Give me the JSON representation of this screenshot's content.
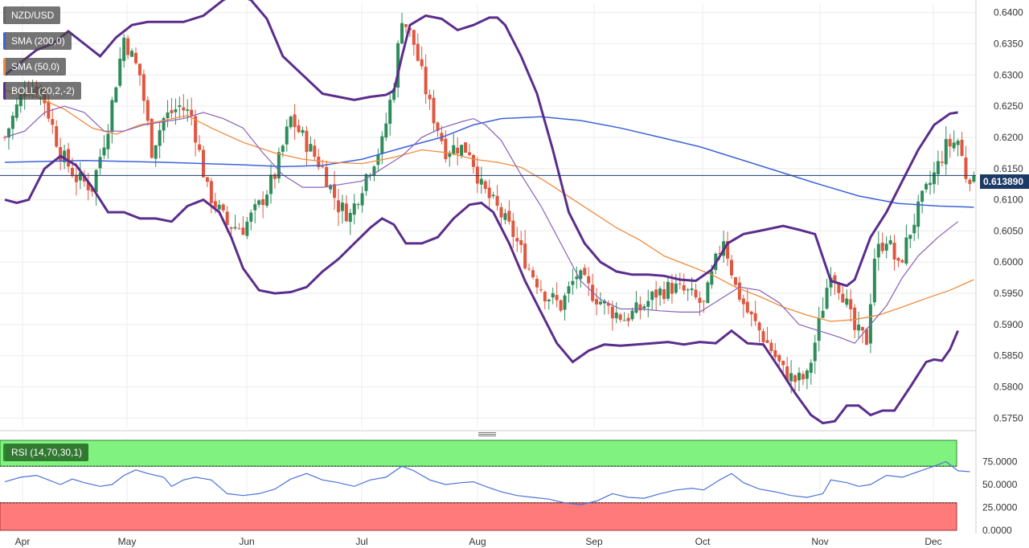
{
  "labels": {
    "symbol": "NZD/USD",
    "sma200": "SMA (200,0)",
    "sma50": "SMA (50,0)",
    "boll": "BOLL (20,2,-2)",
    "rsi": "RSI (14,70,30,1)",
    "last_price": "0.613890"
  },
  "colors": {
    "up": "#2f8c5a",
    "down": "#e0573f",
    "sma200": "#3b63d9",
    "sma50": "#f08a3c",
    "boll_band": "#5b2d8c",
    "boll_mid": "#8860b8",
    "rsi_line": "#4a72d8",
    "overbought_zone": "#7ff27f",
    "oversold_zone": "#ff7b7b"
  },
  "chart_data": {
    "type": "candlestick",
    "x_ticks": [
      "Apr",
      "May",
      "Jun",
      "Jul",
      "Aug",
      "Sep",
      "Oct",
      "Nov",
      "Dec"
    ],
    "y_ticks": [
      "0.6400",
      "0.6350",
      "0.6300",
      "0.6250",
      "0.6200",
      "0.6150",
      "0.6100",
      "0.6050",
      "0.6000",
      "0.5950",
      "0.5900",
      "0.5850",
      "0.5800",
      "0.5750"
    ],
    "ylim": [
      0.5735,
      0.6415
    ],
    "last_price": 0.61389,
    "candle_x_range": [
      0,
      179
    ],
    "price_path": [
      [
        0,
        0.62
      ],
      [
        5,
        0.628
      ],
      [
        9,
        0.628
      ],
      [
        14,
        0.6175
      ],
      [
        18,
        0.6135
      ],
      [
        22,
        0.612
      ],
      [
        26,
        0.622
      ],
      [
        30,
        0.636
      ],
      [
        34,
        0.63
      ],
      [
        37,
        0.618
      ],
      [
        40,
        0.623
      ],
      [
        44,
        0.625
      ],
      [
        47,
        0.6235
      ],
      [
        51,
        0.6115
      ],
      [
        56,
        0.606
      ],
      [
        60,
        0.6055
      ],
      [
        64,
        0.609
      ],
      [
        68,
        0.614
      ],
      [
        72,
        0.623
      ],
      [
        77,
        0.618
      ],
      [
        80,
        0.615
      ],
      [
        84,
        0.609
      ],
      [
        87,
        0.6075
      ],
      [
        91,
        0.614
      ],
      [
        95,
        0.619
      ],
      [
        98,
        0.629
      ],
      [
        100,
        0.6395
      ],
      [
        103,
        0.635
      ],
      [
        107,
        0.625
      ],
      [
        111,
        0.618
      ],
      [
        114,
        0.6185
      ],
      [
        117,
        0.618
      ],
      [
        120,
        0.612
      ],
      [
        124,
        0.6085
      ],
      [
        128,
        0.6045
      ],
      [
        132,
        0.599
      ],
      [
        136,
        0.595
      ],
      [
        140,
        0.593
      ],
      [
        144,
        0.598
      ],
      [
        148,
        0.595
      ],
      [
        152,
        0.5925
      ],
      [
        156,
        0.591
      ],
      [
        160,
        0.5925
      ],
      [
        164,
        0.595
      ],
      [
        168,
        0.596
      ],
      [
        172,
        0.595
      ],
      [
        176,
        0.593
      ],
      [
        179,
        0.6
      ],
      [
        181,
        0.604
      ],
      [
        184,
        0.596
      ],
      [
        187,
        0.592
      ],
      [
        190,
        0.589
      ],
      [
        193,
        0.586
      ],
      [
        196,
        0.5825
      ],
      [
        199,
        0.581
      ],
      [
        202,
        0.5815
      ],
      [
        205,
        0.59
      ],
      [
        208,
        0.599
      ],
      [
        211,
        0.595
      ],
      [
        214,
        0.589
      ],
      [
        217,
        0.5875
      ],
      [
        219,
        0.601
      ],
      [
        222,
        0.604
      ],
      [
        225,
        0.599
      ],
      [
        228,
        0.605
      ],
      [
        231,
        0.61
      ],
      [
        234,
        0.614
      ],
      [
        237,
        0.6185
      ],
      [
        240,
        0.6195
      ],
      [
        242,
        0.614
      ],
      [
        244,
        0.6139
      ]
    ],
    "sma200": [
      [
        0,
        0.616
      ],
      [
        20,
        0.6163
      ],
      [
        40,
        0.616
      ],
      [
        60,
        0.6156
      ],
      [
        70,
        0.6153
      ],
      [
        80,
        0.6155
      ],
      [
        90,
        0.6165
      ],
      [
        100,
        0.6183
      ],
      [
        110,
        0.62
      ],
      [
        118,
        0.622
      ],
      [
        125,
        0.623
      ],
      [
        135,
        0.6233
      ],
      [
        145,
        0.6227
      ],
      [
        155,
        0.6215
      ],
      [
        165,
        0.62
      ],
      [
        175,
        0.6185
      ],
      [
        185,
        0.6165
      ],
      [
        195,
        0.6145
      ],
      [
        205,
        0.6125
      ],
      [
        215,
        0.6106
      ],
      [
        225,
        0.6094
      ],
      [
        235,
        0.609
      ],
      [
        244,
        0.6088
      ]
    ],
    "sma50": [
      [
        0,
        0.6275
      ],
      [
        8,
        0.6265
      ],
      [
        15,
        0.6245
      ],
      [
        22,
        0.6215
      ],
      [
        28,
        0.6205
      ],
      [
        34,
        0.622
      ],
      [
        40,
        0.6227
      ],
      [
        46,
        0.6235
      ],
      [
        52,
        0.6215
      ],
      [
        60,
        0.6192
      ],
      [
        68,
        0.6175
      ],
      [
        75,
        0.6165
      ],
      [
        82,
        0.616
      ],
      [
        90,
        0.6158
      ],
      [
        98,
        0.6168
      ],
      [
        105,
        0.618
      ],
      [
        112,
        0.6175
      ],
      [
        118,
        0.6165
      ],
      [
        124,
        0.616
      ],
      [
        130,
        0.6152
      ],
      [
        136,
        0.613
      ],
      [
        142,
        0.6105
      ],
      [
        148,
        0.608
      ],
      [
        154,
        0.6055
      ],
      [
        160,
        0.6035
      ],
      [
        166,
        0.601
      ],
      [
        172,
        0.5995
      ],
      [
        178,
        0.598
      ],
      [
        184,
        0.596
      ],
      [
        190,
        0.5945
      ],
      [
        196,
        0.5928
      ],
      [
        202,
        0.5915
      ],
      [
        208,
        0.5905
      ],
      [
        214,
        0.5908
      ],
      [
        220,
        0.5915
      ],
      [
        226,
        0.5928
      ],
      [
        232,
        0.5942
      ],
      [
        238,
        0.5955
      ],
      [
        244,
        0.5972
      ]
    ],
    "boll_upper": [
      [
        0,
        0.63
      ],
      [
        4,
        0.632
      ],
      [
        8,
        0.634
      ],
      [
        12,
        0.635
      ],
      [
        16,
        0.637
      ],
      [
        20,
        0.635
      ],
      [
        24,
        0.633
      ],
      [
        28,
        0.636
      ],
      [
        32,
        0.638
      ],
      [
        36,
        0.6385
      ],
      [
        40,
        0.6385
      ],
      [
        45,
        0.6385
      ],
      [
        50,
        0.6395
      ],
      [
        55,
        0.642
      ],
      [
        58,
        0.643
      ],
      [
        62,
        0.642
      ],
      [
        66,
        0.639
      ],
      [
        70,
        0.633
      ],
      [
        75,
        0.63
      ],
      [
        80,
        0.627
      ],
      [
        84,
        0.6265
      ],
      [
        88,
        0.626
      ],
      [
        92,
        0.6265
      ],
      [
        96,
        0.6268
      ],
      [
        98,
        0.6275
      ],
      [
        100,
        0.633
      ],
      [
        102,
        0.638
      ],
      [
        106,
        0.6395
      ],
      [
        110,
        0.639
      ],
      [
        114,
        0.6372
      ],
      [
        118,
        0.638
      ],
      [
        122,
        0.6392
      ],
      [
        124,
        0.6392
      ],
      [
        126,
        0.638
      ],
      [
        130,
        0.633
      ],
      [
        134,
        0.627
      ],
      [
        138,
        0.618
      ],
      [
        142,
        0.608
      ],
      [
        146,
        0.603
      ],
      [
        150,
        0.6
      ],
      [
        154,
        0.5985
      ],
      [
        158,
        0.598
      ],
      [
        162,
        0.598
      ],
      [
        166,
        0.5978
      ],
      [
        170,
        0.5972
      ],
      [
        174,
        0.597
      ],
      [
        178,
        0.5988
      ],
      [
        182,
        0.603
      ],
      [
        186,
        0.6045
      ],
      [
        190,
        0.605
      ],
      [
        196,
        0.6058
      ],
      [
        200,
        0.6052
      ],
      [
        204,
        0.6045
      ],
      [
        208,
        0.597
      ],
      [
        212,
        0.5962
      ],
      [
        214,
        0.5972
      ],
      [
        218,
        0.604
      ],
      [
        222,
        0.608
      ],
      [
        226,
        0.613
      ],
      [
        230,
        0.618
      ],
      [
        234,
        0.622
      ],
      [
        238,
        0.6238
      ],
      [
        240,
        0.624
      ]
    ],
    "boll_lower": [
      [
        0,
        0.61
      ],
      [
        3,
        0.6095
      ],
      [
        6,
        0.61
      ],
      [
        10,
        0.615
      ],
      [
        14,
        0.617
      ],
      [
        18,
        0.6155
      ],
      [
        22,
        0.612
      ],
      [
        26,
        0.608
      ],
      [
        30,
        0.608
      ],
      [
        34,
        0.607
      ],
      [
        38,
        0.607
      ],
      [
        42,
        0.6065
      ],
      [
        46,
        0.609
      ],
      [
        50,
        0.61
      ],
      [
        54,
        0.608
      ],
      [
        57,
        0.604
      ],
      [
        60,
        0.599
      ],
      [
        64,
        0.5955
      ],
      [
        68,
        0.595
      ],
      [
        72,
        0.5952
      ],
      [
        76,
        0.596
      ],
      [
        80,
        0.5985
      ],
      [
        84,
        0.6005
      ],
      [
        88,
        0.603
      ],
      [
        92,
        0.6055
      ],
      [
        95,
        0.607
      ],
      [
        98,
        0.606
      ],
      [
        101,
        0.603
      ],
      [
        105,
        0.603
      ],
      [
        109,
        0.604
      ],
      [
        113,
        0.607
      ],
      [
        117,
        0.6092
      ],
      [
        120,
        0.6095
      ],
      [
        123,
        0.608
      ],
      [
        127,
        0.603
      ],
      [
        131,
        0.597
      ],
      [
        135,
        0.592
      ],
      [
        139,
        0.587
      ],
      [
        143,
        0.584
      ],
      [
        147,
        0.5858
      ],
      [
        151,
        0.5868
      ],
      [
        155,
        0.5866
      ],
      [
        159,
        0.5868
      ],
      [
        163,
        0.587
      ],
      [
        167,
        0.5872
      ],
      [
        171,
        0.5868
      ],
      [
        175,
        0.5872
      ],
      [
        179,
        0.587
      ],
      [
        183,
        0.589
      ],
      [
        187,
        0.587
      ],
      [
        191,
        0.5868
      ],
      [
        195,
        0.583
      ],
      [
        199,
        0.579
      ],
      [
        203,
        0.5755
      ],
      [
        206,
        0.5742
      ],
      [
        209,
        0.5745
      ],
      [
        212,
        0.577
      ],
      [
        215,
        0.577
      ],
      [
        218,
        0.5755
      ],
      [
        221,
        0.5762
      ],
      [
        224,
        0.5762
      ],
      [
        228,
        0.58
      ],
      [
        232,
        0.584
      ],
      [
        234,
        0.5844
      ],
      [
        236,
        0.5842
      ],
      [
        238,
        0.586
      ],
      [
        240,
        0.589
      ]
    ],
    "boll_mid": [
      [
        0,
        0.62
      ],
      [
        5,
        0.621
      ],
      [
        10,
        0.624
      ],
      [
        15,
        0.625
      ],
      [
        20,
        0.624
      ],
      [
        25,
        0.621
      ],
      [
        30,
        0.621
      ],
      [
        35,
        0.622
      ],
      [
        40,
        0.6225
      ],
      [
        45,
        0.623
      ],
      [
        50,
        0.624
      ],
      [
        55,
        0.623
      ],
      [
        60,
        0.6215
      ],
      [
        65,
        0.6175
      ],
      [
        70,
        0.614
      ],
      [
        75,
        0.612
      ],
      [
        80,
        0.612
      ],
      [
        85,
        0.6125
      ],
      [
        90,
        0.613
      ],
      [
        95,
        0.615
      ],
      [
        100,
        0.617
      ],
      [
        105,
        0.62
      ],
      [
        110,
        0.6215
      ],
      [
        115,
        0.6225
      ],
      [
        118,
        0.623
      ],
      [
        121,
        0.622
      ],
      [
        125,
        0.6195
      ],
      [
        130,
        0.614
      ],
      [
        135,
        0.609
      ],
      [
        140,
        0.603
      ],
      [
        145,
        0.597
      ],
      [
        150,
        0.594
      ],
      [
        155,
        0.5925
      ],
      [
        160,
        0.5925
      ],
      [
        165,
        0.5922
      ],
      [
        170,
        0.592
      ],
      [
        175,
        0.592
      ],
      [
        180,
        0.594
      ],
      [
        185,
        0.596
      ],
      [
        190,
        0.5955
      ],
      [
        195,
        0.5935
      ],
      [
        200,
        0.59
      ],
      [
        205,
        0.589
      ],
      [
        210,
        0.588
      ],
      [
        214,
        0.587
      ],
      [
        218,
        0.59
      ],
      [
        222,
        0.593
      ],
      [
        226,
        0.5975
      ],
      [
        230,
        0.601
      ],
      [
        235,
        0.604
      ],
      [
        240,
        0.6065
      ]
    ],
    "rsi": {
      "ylim": [
        0,
        100
      ],
      "y_ticks": [
        "75.0000",
        "50.0000",
        "25.0000",
        "0.0000"
      ],
      "overbought": 70,
      "oversold": 30,
      "values": [
        [
          0,
          53
        ],
        [
          4,
          58
        ],
        [
          8,
          60
        ],
        [
          11,
          55
        ],
        [
          14,
          50
        ],
        [
          17,
          56
        ],
        [
          20,
          52
        ],
        [
          24,
          48
        ],
        [
          27,
          50
        ],
        [
          30,
          60
        ],
        [
          33,
          66
        ],
        [
          36,
          62
        ],
        [
          40,
          58
        ],
        [
          42,
          48
        ],
        [
          45,
          55
        ],
        [
          48,
          58
        ],
        [
          52,
          55
        ],
        [
          56,
          40
        ],
        [
          60,
          38
        ],
        [
          64,
          40
        ],
        [
          68,
          45
        ],
        [
          72,
          56
        ],
        [
          76,
          62
        ],
        [
          80,
          55
        ],
        [
          84,
          52
        ],
        [
          88,
          48
        ],
        [
          92,
          55
        ],
        [
          96,
          58
        ],
        [
          100,
          70
        ],
        [
          103,
          65
        ],
        [
          107,
          55
        ],
        [
          111,
          50
        ],
        [
          115,
          52
        ],
        [
          118,
          53
        ],
        [
          121,
          48
        ],
        [
          125,
          42
        ],
        [
          129,
          38
        ],
        [
          133,
          36
        ],
        [
          137,
          34
        ],
        [
          141,
          30
        ],
        [
          145,
          28
        ],
        [
          149,
          32
        ],
        [
          153,
          40
        ],
        [
          157,
          36
        ],
        [
          161,
          35
        ],
        [
          165,
          40
        ],
        [
          169,
          44
        ],
        [
          173,
          46
        ],
        [
          176,
          44
        ],
        [
          180,
          55
        ],
        [
          183,
          62
        ],
        [
          186,
          52
        ],
        [
          190,
          45
        ],
        [
          194,
          42
        ],
        [
          198,
          38
        ],
        [
          202,
          36
        ],
        [
          206,
          40
        ],
        [
          208,
          55
        ],
        [
          212,
          52
        ],
        [
          215,
          48
        ],
        [
          218,
          50
        ],
        [
          222,
          60
        ],
        [
          226,
          58
        ],
        [
          230,
          64
        ],
        [
          234,
          70
        ],
        [
          237,
          75
        ],
        [
          240,
          65
        ],
        [
          243,
          64
        ]
      ]
    }
  }
}
